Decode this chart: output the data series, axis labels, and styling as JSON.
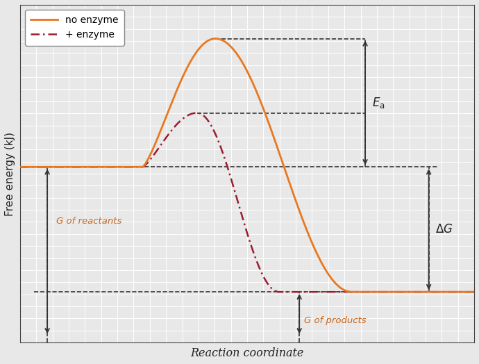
{
  "xlabel": "Reaction coordinate",
  "ylabel": "Free energy (kJ)",
  "background_color": "#e8e8e8",
  "grid_color": "#ffffff",
  "line_no_enzyme_color": "#e87820",
  "line_enzyme_color": "#9b1c2e",
  "reactant_level": 0.52,
  "product_level": 0.15,
  "no_enzyme_peak": 0.9,
  "enzyme_peak": 0.68,
  "legend_no_enzyme": "no enzyme",
  "legend_enzyme": "+ enzyme",
  "label_g_reactants": "G of reactants",
  "label_g_products": "G of products",
  "label_ea": "$E_{\\mathrm{a}}$",
  "label_delta_g": "$\\Delta G$",
  "annotation_color": "#333333",
  "label_color": "#c86820"
}
